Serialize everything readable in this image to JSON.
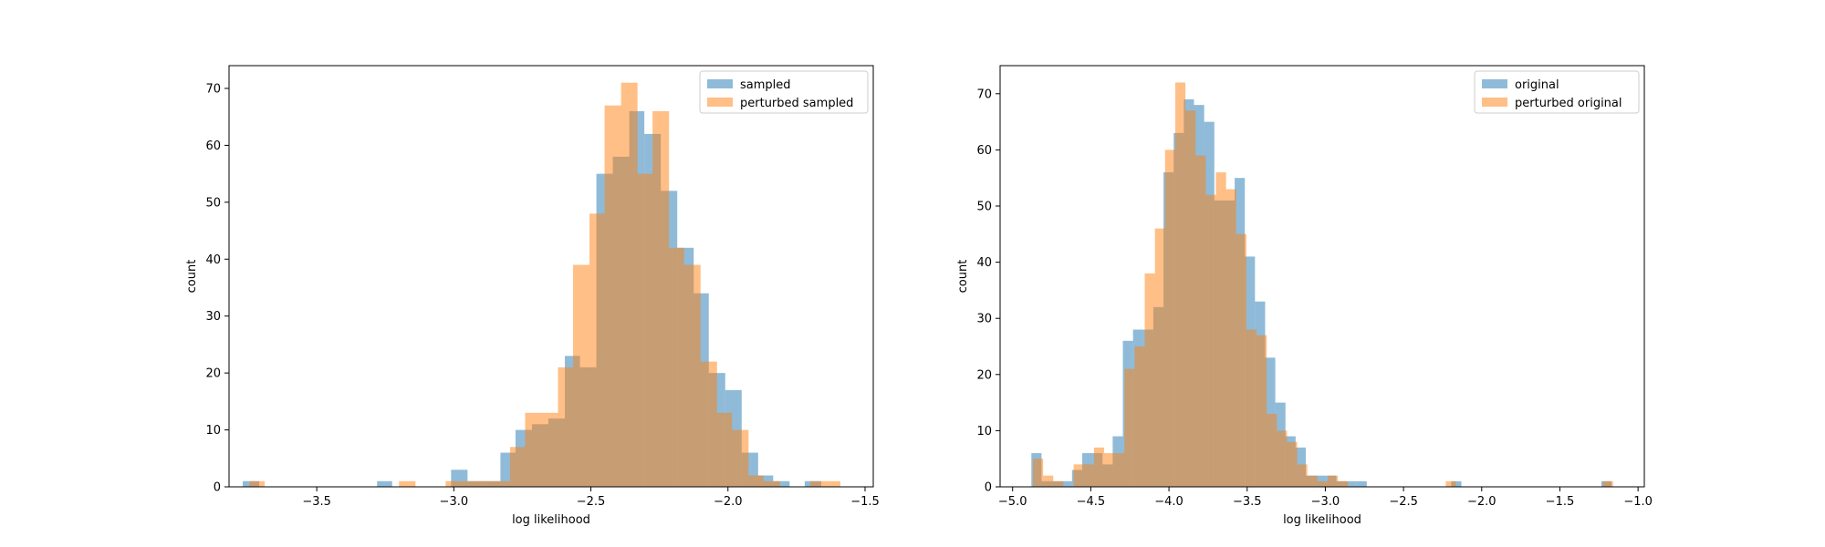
{
  "colors": {
    "series1": "#1f77b4",
    "series2": "#ff7f0e"
  },
  "chart_data": [
    {
      "type": "histogram",
      "xlabel": "log likelihood",
      "ylabel": "count",
      "xlim": [
        -3.82,
        -1.47
      ],
      "ylim": [
        0,
        74
      ],
      "xticks": [
        -3.5,
        -3.0,
        -2.5,
        -2.0,
        -1.5
      ],
      "xtick_labels": [
        "−3.5",
        "−3.0",
        "−2.5",
        "−2.0",
        "−1.5"
      ],
      "yticks": [
        0,
        10,
        20,
        30,
        40,
        50,
        60,
        70
      ],
      "ytick_labels": [
        "0",
        "10",
        "20",
        "30",
        "40",
        "50",
        "60",
        "70"
      ],
      "legend_position": "top-right",
      "series": [
        {
          "name": "sampled",
          "color": "#1f77b4",
          "alpha": 0.5,
          "bins": [
            {
              "x0": -3.77,
              "x1": -3.71,
              "count": 1
            },
            {
              "x0": -3.28,
              "x1": -3.225,
              "count": 1
            },
            {
              "x0": -3.01,
              "x1": -2.95,
              "count": 3
            },
            {
              "x0": -2.95,
              "x1": -2.89,
              "count": 1
            },
            {
              "x0": -2.89,
              "x1": -2.83,
              "count": 1
            },
            {
              "x0": -2.83,
              "x1": -2.775,
              "count": 6
            },
            {
              "x0": -2.775,
              "x1": -2.715,
              "count": 10
            },
            {
              "x0": -2.715,
              "x1": -2.655,
              "count": 11
            },
            {
              "x0": -2.655,
              "x1": -2.595,
              "count": 12
            },
            {
              "x0": -2.595,
              "x1": -2.54,
              "count": 23
            },
            {
              "x0": -2.54,
              "x1": -2.48,
              "count": 21
            },
            {
              "x0": -2.48,
              "x1": -2.42,
              "count": 55
            },
            {
              "x0": -2.42,
              "x1": -2.36,
              "count": 58
            },
            {
              "x0": -2.36,
              "x1": -2.305,
              "count": 66
            },
            {
              "x0": -2.305,
              "x1": -2.245,
              "count": 62
            },
            {
              "x0": -2.245,
              "x1": -2.185,
              "count": 52
            },
            {
              "x0": -2.185,
              "x1": -2.125,
              "count": 42
            },
            {
              "x0": -2.125,
              "x1": -2.07,
              "count": 34
            },
            {
              "x0": -2.07,
              "x1": -2.01,
              "count": 20
            },
            {
              "x0": -2.01,
              "x1": -1.95,
              "count": 17
            },
            {
              "x0": -1.95,
              "x1": -1.89,
              "count": 6
            },
            {
              "x0": -1.89,
              "x1": -1.835,
              "count": 2
            },
            {
              "x0": -1.835,
              "x1": -1.775,
              "count": 1
            },
            {
              "x0": -1.72,
              "x1": -1.66,
              "count": 1
            }
          ]
        },
        {
          "name": "perturbed sampled",
          "color": "#ff7f0e",
          "alpha": 0.5,
          "bins": [
            {
              "x0": -3.745,
              "x1": -3.69,
              "count": 1
            },
            {
              "x0": -3.2,
              "x1": -3.14,
              "count": 1
            },
            {
              "x0": -3.03,
              "x1": -2.97,
              "count": 1
            },
            {
              "x0": -2.97,
              "x1": -2.91,
              "count": 1
            },
            {
              "x0": -2.91,
              "x1": -2.855,
              "count": 1
            },
            {
              "x0": -2.855,
              "x1": -2.795,
              "count": 1
            },
            {
              "x0": -2.795,
              "x1": -2.74,
              "count": 7
            },
            {
              "x0": -2.74,
              "x1": -2.68,
              "count": 13
            },
            {
              "x0": -2.68,
              "x1": -2.62,
              "count": 13
            },
            {
              "x0": -2.62,
              "x1": -2.565,
              "count": 21
            },
            {
              "x0": -2.565,
              "x1": -2.505,
              "count": 39
            },
            {
              "x0": -2.505,
              "x1": -2.45,
              "count": 48
            },
            {
              "x0": -2.45,
              "x1": -2.39,
              "count": 67
            },
            {
              "x0": -2.39,
              "x1": -2.33,
              "count": 71
            },
            {
              "x0": -2.33,
              "x1": -2.275,
              "count": 55
            },
            {
              "x0": -2.275,
              "x1": -2.215,
              "count": 66
            },
            {
              "x0": -2.215,
              "x1": -2.16,
              "count": 42
            },
            {
              "x0": -2.16,
              "x1": -2.1,
              "count": 39
            },
            {
              "x0": -2.1,
              "x1": -2.04,
              "count": 22
            },
            {
              "x0": -2.04,
              "x1": -1.985,
              "count": 13
            },
            {
              "x0": -1.985,
              "x1": -1.925,
              "count": 10
            },
            {
              "x0": -1.925,
              "x1": -1.87,
              "count": 2
            },
            {
              "x0": -1.87,
              "x1": -1.81,
              "count": 1
            },
            {
              "x0": -1.7,
              "x1": -1.645,
              "count": 1
            },
            {
              "x0": -1.645,
              "x1": -1.59,
              "count": 1
            }
          ]
        }
      ]
    },
    {
      "type": "histogram",
      "xlabel": "log likelihood",
      "ylabel": "count",
      "xlim": [
        -5.08,
        -0.96
      ],
      "ylim": [
        0,
        75
      ],
      "xticks": [
        -5.0,
        -4.5,
        -4.0,
        -3.5,
        -3.0,
        -2.5,
        -2.0,
        -1.5,
        -1.0
      ],
      "xtick_labels": [
        "−5.0",
        "−4.5",
        "−4.0",
        "−3.5",
        "−3.0",
        "−2.5",
        "−2.0",
        "−1.5",
        "−1.0"
      ],
      "yticks": [
        0,
        10,
        20,
        30,
        40,
        50,
        60,
        70
      ],
      "ytick_labels": [
        "0",
        "10",
        "20",
        "30",
        "40",
        "50",
        "60",
        "70"
      ],
      "legend_position": "top-right",
      "series": [
        {
          "name": "original",
          "color": "#1f77b4",
          "alpha": 0.5,
          "bins": [
            {
              "x0": -4.88,
              "x1": -4.815,
              "count": 6
            },
            {
              "x0": -4.815,
              "x1": -4.75,
              "count": 1
            },
            {
              "x0": -4.75,
              "x1": -4.685,
              "count": 1
            },
            {
              "x0": -4.685,
              "x1": -4.62,
              "count": 1
            },
            {
              "x0": -4.62,
              "x1": -4.555,
              "count": 3
            },
            {
              "x0": -4.555,
              "x1": -4.49,
              "count": 6
            },
            {
              "x0": -4.49,
              "x1": -4.425,
              "count": 6
            },
            {
              "x0": -4.425,
              "x1": -4.36,
              "count": 4
            },
            {
              "x0": -4.36,
              "x1": -4.295,
              "count": 9
            },
            {
              "x0": -4.295,
              "x1": -4.23,
              "count": 26
            },
            {
              "x0": -4.23,
              "x1": -4.165,
              "count": 28
            },
            {
              "x0": -4.165,
              "x1": -4.1,
              "count": 28
            },
            {
              "x0": -4.1,
              "x1": -4.035,
              "count": 32
            },
            {
              "x0": -4.035,
              "x1": -3.97,
              "count": 56
            },
            {
              "x0": -3.97,
              "x1": -3.905,
              "count": 63
            },
            {
              "x0": -3.905,
              "x1": -3.84,
              "count": 69
            },
            {
              "x0": -3.84,
              "x1": -3.775,
              "count": 68
            },
            {
              "x0": -3.775,
              "x1": -3.71,
              "count": 65
            },
            {
              "x0": -3.71,
              "x1": -3.645,
              "count": 51
            },
            {
              "x0": -3.645,
              "x1": -3.58,
              "count": 51
            },
            {
              "x0": -3.58,
              "x1": -3.515,
              "count": 55
            },
            {
              "x0": -3.515,
              "x1": -3.45,
              "count": 41
            },
            {
              "x0": -3.45,
              "x1": -3.385,
              "count": 33
            },
            {
              "x0": -3.385,
              "x1": -3.32,
              "count": 23
            },
            {
              "x0": -3.32,
              "x1": -3.255,
              "count": 15
            },
            {
              "x0": -3.255,
              "x1": -3.19,
              "count": 9
            },
            {
              "x0": -3.19,
              "x1": -3.125,
              "count": 7
            },
            {
              "x0": -3.125,
              "x1": -3.06,
              "count": 2
            },
            {
              "x0": -3.06,
              "x1": -2.995,
              "count": 2
            },
            {
              "x0": -2.995,
              "x1": -2.93,
              "count": 2
            },
            {
              "x0": -2.93,
              "x1": -2.865,
              "count": 1
            },
            {
              "x0": -2.865,
              "x1": -2.8,
              "count": 1
            },
            {
              "x0": -2.8,
              "x1": -2.735,
              "count": 1
            },
            {
              "x0": -2.195,
              "x1": -2.13,
              "count": 1
            },
            {
              "x0": -1.235,
              "x1": -1.17,
              "count": 1
            }
          ]
        },
        {
          "name": "perturbed original",
          "color": "#ff7f0e",
          "alpha": 0.5,
          "bins": [
            {
              "x0": -4.87,
              "x1": -4.805,
              "count": 5
            },
            {
              "x0": -4.805,
              "x1": -4.74,
              "count": 2
            },
            {
              "x0": -4.74,
              "x1": -4.675,
              "count": 1
            },
            {
              "x0": -4.61,
              "x1": -4.545,
              "count": 4
            },
            {
              "x0": -4.545,
              "x1": -4.48,
              "count": 4
            },
            {
              "x0": -4.48,
              "x1": -4.415,
              "count": 7
            },
            {
              "x0": -4.415,
              "x1": -4.35,
              "count": 6
            },
            {
              "x0": -4.35,
              "x1": -4.285,
              "count": 6
            },
            {
              "x0": -4.285,
              "x1": -4.22,
              "count": 21
            },
            {
              "x0": -4.22,
              "x1": -4.155,
              "count": 25
            },
            {
              "x0": -4.155,
              "x1": -4.09,
              "count": 38
            },
            {
              "x0": -4.09,
              "x1": -4.025,
              "count": 46
            },
            {
              "x0": -4.025,
              "x1": -3.96,
              "count": 60
            },
            {
              "x0": -3.96,
              "x1": -3.895,
              "count": 72
            },
            {
              "x0": -3.895,
              "x1": -3.83,
              "count": 67
            },
            {
              "x0": -3.83,
              "x1": -3.765,
              "count": 59
            },
            {
              "x0": -3.765,
              "x1": -3.7,
              "count": 52
            },
            {
              "x0": -3.7,
              "x1": -3.635,
              "count": 56
            },
            {
              "x0": -3.635,
              "x1": -3.57,
              "count": 53
            },
            {
              "x0": -3.57,
              "x1": -3.505,
              "count": 45
            },
            {
              "x0": -3.505,
              "x1": -3.44,
              "count": 28
            },
            {
              "x0": -3.44,
              "x1": -3.375,
              "count": 27
            },
            {
              "x0": -3.375,
              "x1": -3.31,
              "count": 13
            },
            {
              "x0": -3.31,
              "x1": -3.245,
              "count": 10
            },
            {
              "x0": -3.245,
              "x1": -3.18,
              "count": 8
            },
            {
              "x0": -3.18,
              "x1": -3.115,
              "count": 4
            },
            {
              "x0": -3.115,
              "x1": -3.05,
              "count": 2
            },
            {
              "x0": -3.05,
              "x1": -2.985,
              "count": 1
            },
            {
              "x0": -2.985,
              "x1": -2.92,
              "count": 2
            },
            {
              "x0": -2.92,
              "x1": -2.855,
              "count": 1
            },
            {
              "x0": -2.23,
              "x1": -2.165,
              "count": 1
            },
            {
              "x0": -1.225,
              "x1": -1.16,
              "count": 1
            }
          ]
        }
      ]
    }
  ]
}
